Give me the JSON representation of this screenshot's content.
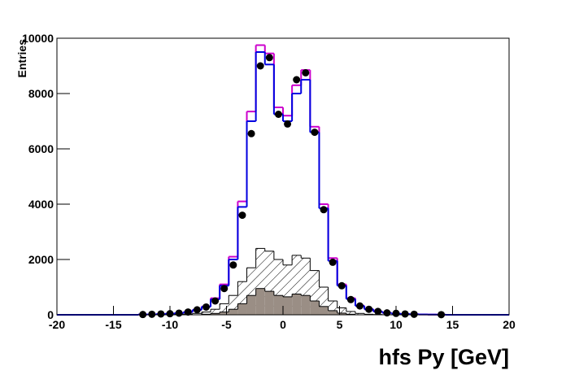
{
  "chart_data": {
    "type": "histogram",
    "xlabel": "hfs Py [GeV]",
    "ylabel": "Entries",
    "bins": [
      -20,
      -19.2,
      -18.4,
      -17.6,
      -16.8,
      -16,
      -15.2,
      -14.4,
      -13.6,
      -12.8,
      -12,
      -11.2,
      -10.4,
      -9.6,
      -8.8,
      -8,
      -7.2,
      -6.4,
      -5.6,
      -4.8,
      -4,
      -3.2,
      -2.4,
      -1.6,
      -0.8,
      0,
      0.8,
      1.6,
      2.4,
      3.2,
      4,
      4.8,
      5.6,
      6.4,
      7.2,
      8,
      8.8,
      9.6,
      10.4,
      11.2,
      12,
      12.8,
      13.6,
      14.4,
      15.2,
      16,
      16.8,
      17.6,
      18.4,
      19.2,
      20
    ],
    "series": [
      {
        "style": "filled",
        "fill": "hatch",
        "color": "#000000",
        "values": [
          0,
          0,
          0,
          0,
          0,
          0,
          0,
          0,
          0,
          0,
          0,
          0,
          0,
          20,
          30,
          50,
          100,
          200,
          400,
          700,
          1200,
          1700,
          2400,
          2300,
          2000,
          1800,
          2150,
          2050,
          1600,
          1000,
          500,
          250,
          120,
          50,
          20,
          10,
          0,
          0,
          0,
          0,
          0,
          0,
          0,
          0,
          0,
          0,
          0,
          0,
          0,
          0
        ]
      },
      {
        "style": "filled",
        "fill": "#9a8e85",
        "color": "#000000",
        "values": [
          0,
          0,
          0,
          0,
          0,
          0,
          0,
          0,
          0,
          0,
          0,
          0,
          0,
          0,
          0,
          0,
          20,
          50,
          100,
          200,
          400,
          700,
          950,
          850,
          700,
          650,
          750,
          700,
          500,
          300,
          150,
          60,
          20,
          0,
          0,
          0,
          0,
          0,
          0,
          0,
          0,
          0,
          0,
          0,
          0,
          0,
          0,
          0,
          0,
          0
        ]
      },
      {
        "style": "step",
        "color": "#cc00cc",
        "values": [
          0,
          0,
          0,
          0,
          0,
          0,
          0,
          0,
          0,
          10,
          15,
          25,
          40,
          60,
          100,
          180,
          300,
          600,
          1100,
          2100,
          4100,
          7350,
          9750,
          9450,
          7500,
          7200,
          8300,
          8850,
          6800,
          4000,
          2050,
          1100,
          600,
          330,
          200,
          120,
          70,
          45,
          30,
          20,
          12,
          8,
          5,
          0,
          0,
          0,
          0,
          0,
          0,
          0
        ]
      },
      {
        "style": "step",
        "color": "#0000e0",
        "values": [
          0,
          0,
          0,
          0,
          0,
          0,
          0,
          0,
          0,
          10,
          15,
          25,
          40,
          60,
          100,
          180,
          290,
          560,
          1050,
          2000,
          3900,
          7000,
          9500,
          9050,
          7250,
          7000,
          8000,
          8500,
          6600,
          3850,
          1950,
          1050,
          570,
          320,
          200,
          120,
          70,
          45,
          30,
          20,
          12,
          8,
          5,
          0,
          0,
          0,
          0,
          0,
          0,
          0
        ]
      },
      {
        "style": "markers",
        "color": "#000000",
        "values": [
          null,
          null,
          null,
          null,
          null,
          null,
          null,
          null,
          null,
          10,
          20,
          30,
          40,
          60,
          100,
          180,
          280,
          500,
          950,
          1800,
          3600,
          6550,
          9000,
          9300,
          7250,
          6900,
          8500,
          8750,
          6600,
          3800,
          1900,
          1050,
          550,
          320,
          200,
          120,
          70,
          50,
          30,
          20,
          null,
          null,
          5,
          null,
          null,
          null,
          null,
          null,
          null,
          null
        ]
      }
    ],
    "xlim": [
      -20,
      20
    ],
    "xticks": [
      -20,
      -15,
      -10,
      -5,
      0,
      5,
      10,
      15,
      20
    ],
    "ylim": [
      0,
      10000
    ],
    "yticks": [
      0,
      2000,
      4000,
      6000,
      8000,
      10000
    ]
  }
}
